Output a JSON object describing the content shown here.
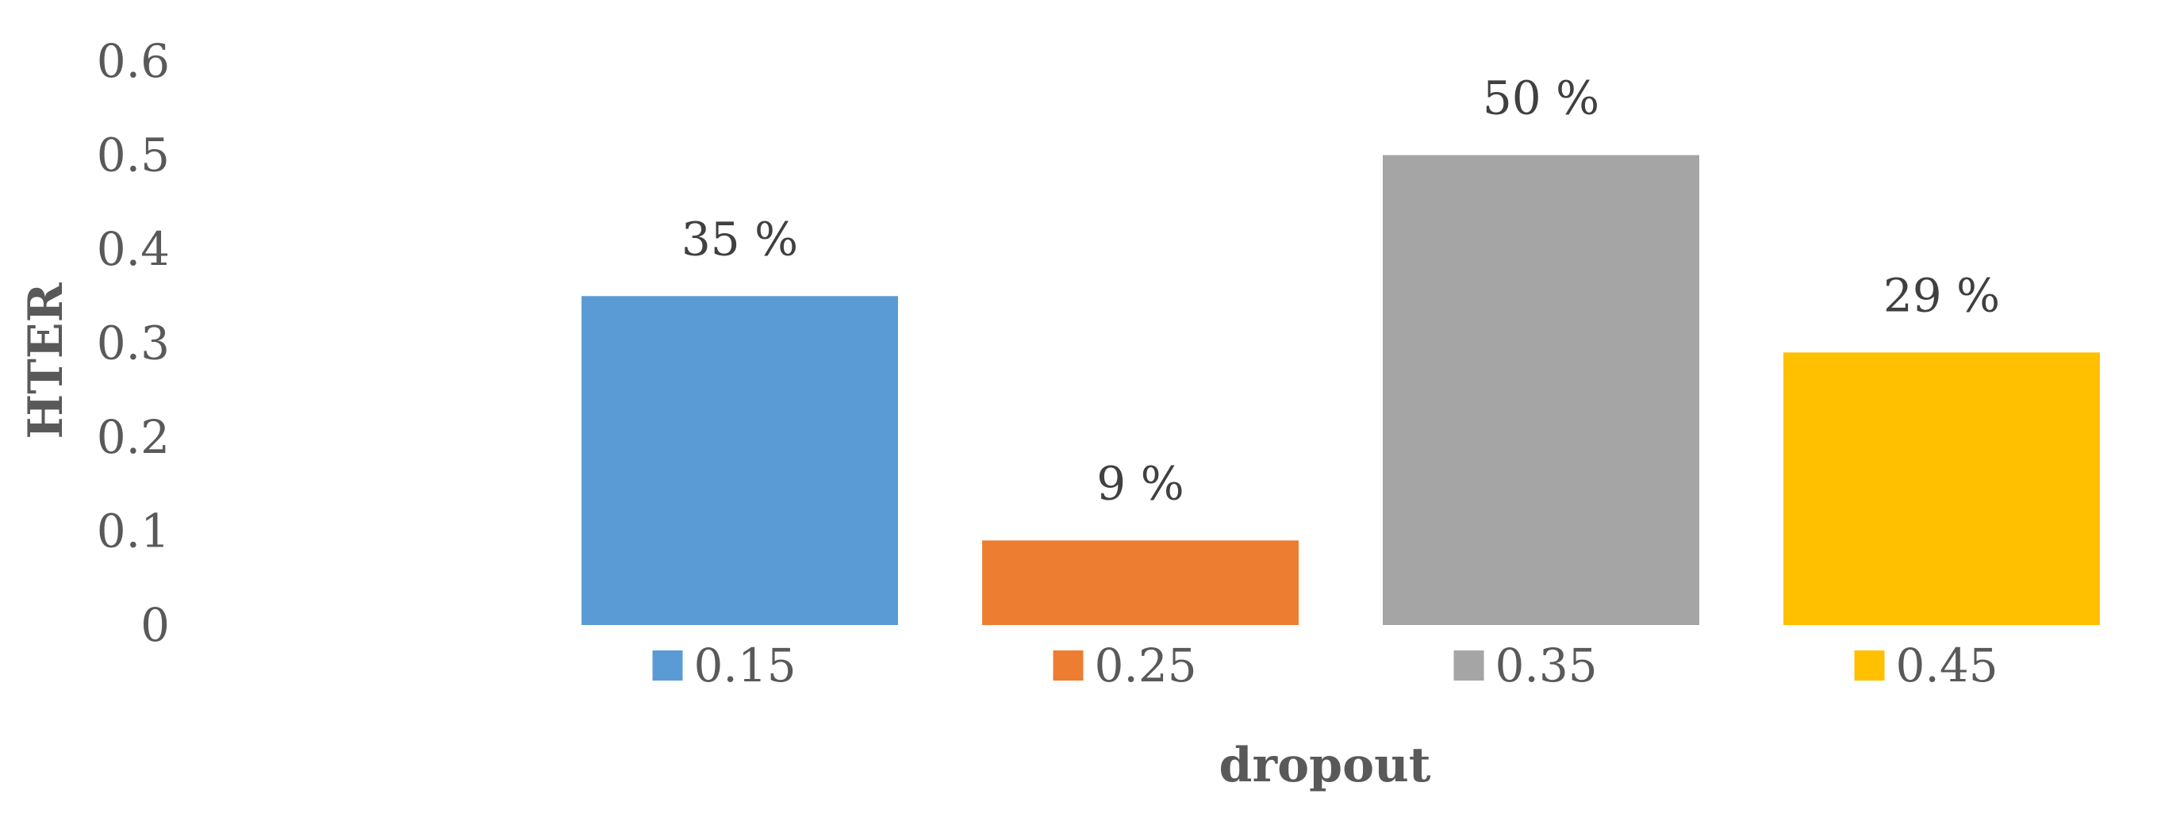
{
  "chart_data": {
    "type": "bar",
    "categories": [
      "0.15",
      "0.25",
      "0.35",
      "0.45"
    ],
    "values": [
      0.35,
      0.09,
      0.5,
      0.29
    ],
    "data_labels": [
      "35 %",
      "9 %",
      "50 %",
      "29 %"
    ],
    "colors": [
      "#5B9BD5",
      "#ED7D31",
      "#A5A5A5",
      "#FFC000"
    ],
    "xlabel": "dropout",
    "ylabel": "HTER",
    "ylim": [
      0,
      0.6
    ],
    "yticks": [
      0,
      0.1,
      0.2,
      0.3,
      0.4,
      0.5,
      0.6
    ],
    "ytick_labels": [
      "0",
      "0.1",
      "0.2",
      "0.3",
      "0.4",
      "0.5",
      "0.6"
    ],
    "legend": {
      "position": "bottom",
      "entries": [
        "0.15",
        "0.25",
        "0.35",
        "0.45"
      ]
    },
    "grid": false
  }
}
